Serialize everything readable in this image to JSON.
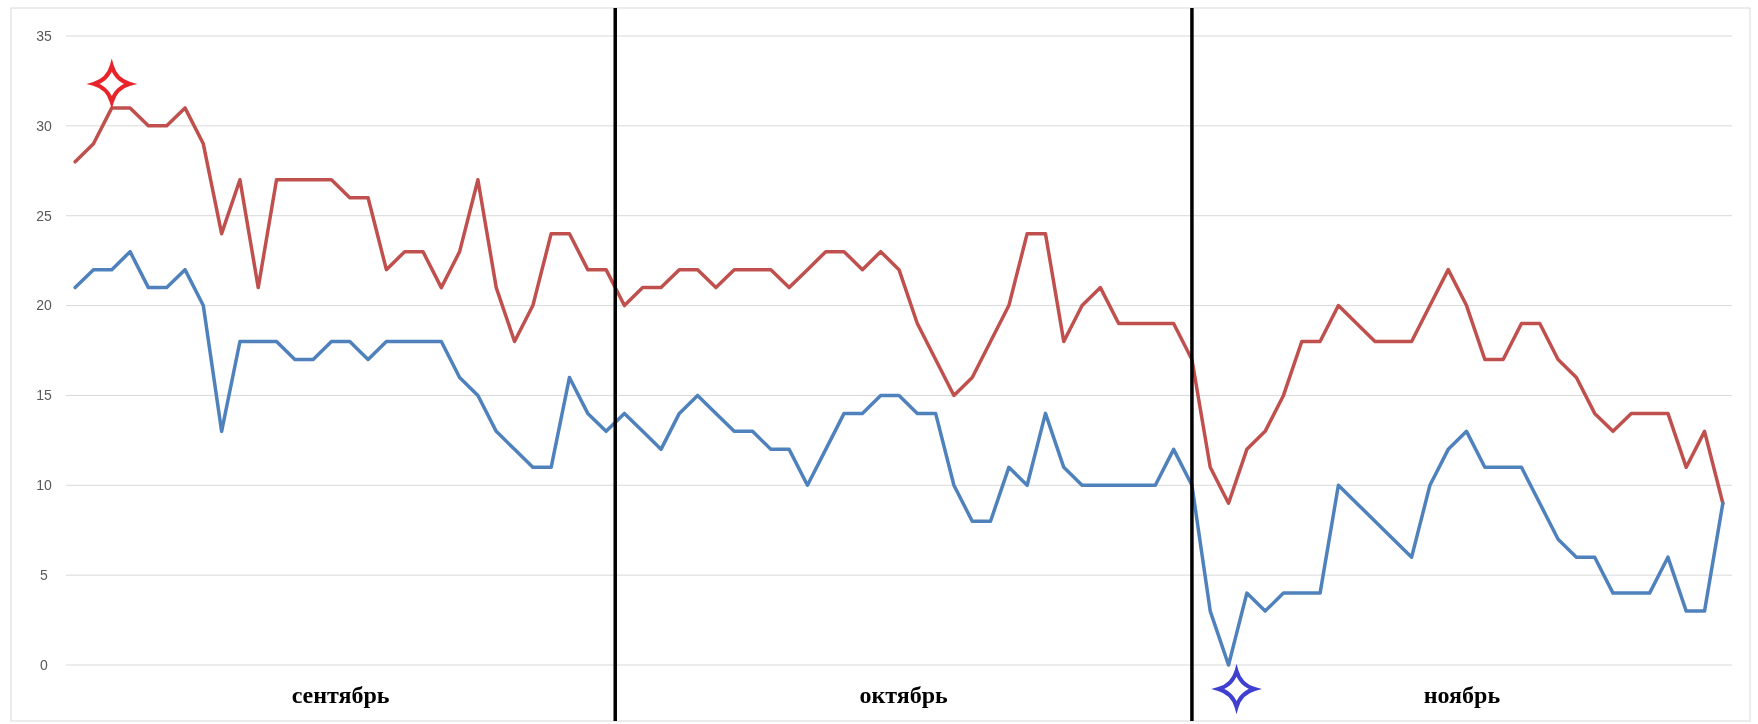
{
  "chart_data": {
    "type": "line",
    "categories": [
      null,
      null,
      null,
      null,
      null,
      null,
      null,
      null,
      null,
      null,
      null,
      null,
      null,
      null,
      null,
      null,
      null,
      null,
      null,
      null,
      null,
      null,
      null,
      null,
      null,
      null,
      null,
      null,
      null,
      null,
      null,
      null,
      null,
      null,
      null,
      null,
      null,
      null,
      null,
      null,
      null,
      null,
      null,
      null,
      null,
      null,
      null,
      null,
      null,
      null,
      null,
      null,
      null,
      null,
      null,
      null,
      null,
      null,
      null,
      null,
      null,
      null,
      null,
      null,
      null,
      null,
      null,
      null,
      null,
      null,
      null,
      null,
      null,
      null,
      null,
      null,
      null,
      null,
      null,
      null,
      null,
      null,
      null,
      null,
      null,
      null,
      null,
      null,
      null,
      null,
      null
    ],
    "ylim": [
      0,
      35
    ],
    "yticks": [
      0,
      5,
      10,
      15,
      20,
      25,
      30,
      35
    ],
    "grid": "y",
    "marker": "none",
    "line_style": "solid",
    "series": [
      {
        "color": "#c0504d",
        "values": [
          28,
          29,
          31,
          31,
          30,
          30,
          31,
          29,
          24,
          27,
          21,
          27,
          27,
          27,
          27,
          26,
          26,
          22,
          23,
          23,
          21,
          23,
          27,
          21,
          18,
          20,
          24,
          24,
          22,
          22,
          20,
          21,
          21,
          22,
          22,
          21,
          22,
          22,
          22,
          21,
          22,
          23,
          23,
          22,
          23,
          22,
          19,
          17,
          15,
          16,
          18,
          20,
          24,
          24,
          18,
          20,
          21,
          19,
          19,
          19,
          19,
          17,
          11,
          9,
          12,
          13,
          15,
          18,
          18,
          20,
          19,
          18,
          18,
          18,
          20,
          22,
          20,
          17,
          17,
          19,
          19,
          17,
          16,
          14,
          13,
          14,
          14,
          14,
          11,
          13,
          9
        ]
      },
      {
        "color": "#4f81bd",
        "values": [
          21,
          22,
          22,
          23,
          21,
          21,
          22,
          20,
          13,
          18,
          18,
          18,
          17,
          17,
          18,
          18,
          17,
          18,
          18,
          18,
          18,
          16,
          15,
          13,
          12,
          11,
          11,
          16,
          14,
          13,
          14,
          13,
          12,
          14,
          15,
          14,
          13,
          13,
          12,
          12,
          10,
          12,
          14,
          14,
          15,
          15,
          14,
          14,
          10,
          8,
          8,
          11,
          10,
          14,
          11,
          10,
          10,
          10,
          10,
          10,
          12,
          10,
          3,
          0,
          4,
          3,
          4,
          4,
          4,
          10,
          9,
          8,
          7,
          6,
          10,
          12,
          13,
          11,
          11,
          11,
          9,
          7,
          6,
          6,
          4,
          4,
          4,
          6,
          3,
          3,
          9
        ]
      }
    ],
    "annotations": [
      "сентябрь",
      "октябрь",
      "ноябрь"
    ]
  }
}
